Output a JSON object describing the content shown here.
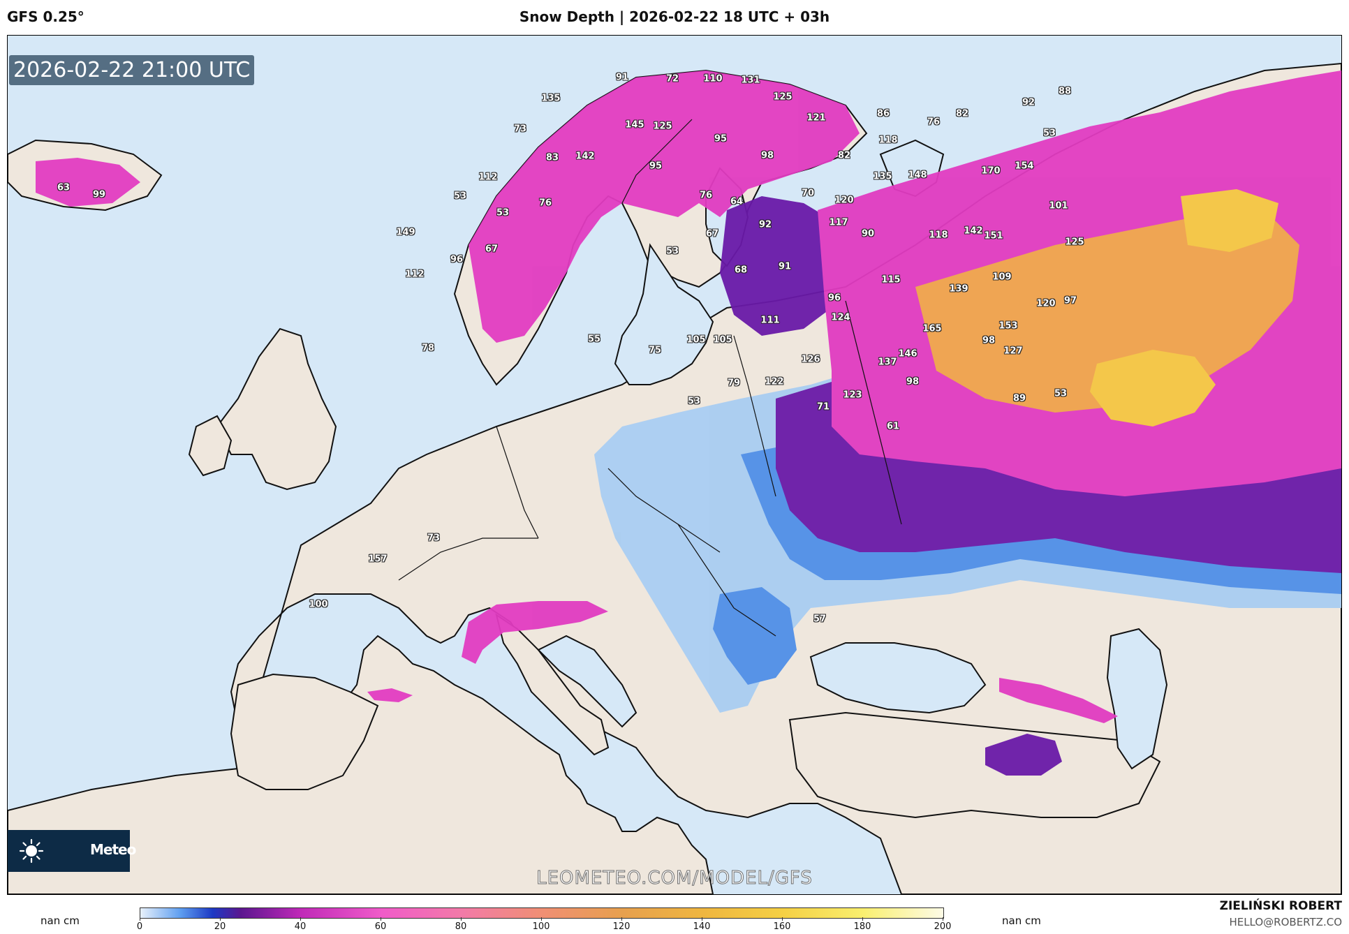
{
  "header": {
    "model": "GFS 0.25°",
    "title": "Snow Depth | 2026-02-22 18 UTC + 03h"
  },
  "map": {
    "valid_time": "2026-02-22 21:00 UTC",
    "watermark": "LEOMETEO.COM/MODEL/GFS",
    "logo_text": "Meteo",
    "colors": {
      "sea": "#d6e8f7",
      "land": "#efe7dd",
      "light_blue": "#a9cdf2",
      "blue": "#4f8fe8",
      "dark_blue": "#2a49d0",
      "purple": "#6a1aa8",
      "magenta": "#e13cc1",
      "pink": "#f37ad0",
      "orange": "#f0a24c",
      "yellow": "#f5c643"
    },
    "value_labels": [
      {
        "v": "135"
      },
      {
        "v": "91"
      },
      {
        "v": "72"
      },
      {
        "v": "110"
      },
      {
        "v": "131"
      },
      {
        "v": "125"
      },
      {
        "v": "121"
      },
      {
        "v": "86"
      },
      {
        "v": "76"
      },
      {
        "v": "82"
      },
      {
        "v": "92"
      },
      {
        "v": "88"
      },
      {
        "v": "73"
      },
      {
        "v": "145"
      },
      {
        "v": "125"
      },
      {
        "v": "95"
      },
      {
        "v": "98"
      },
      {
        "v": "82"
      },
      {
        "v": "118"
      },
      {
        "v": "53"
      },
      {
        "v": "83"
      },
      {
        "v": "142"
      },
      {
        "v": "95"
      },
      {
        "v": "135"
      },
      {
        "v": "148"
      },
      {
        "v": "170"
      },
      {
        "v": "154"
      },
      {
        "v": "112"
      },
      {
        "v": "70"
      },
      {
        "v": "76"
      },
      {
        "v": "76"
      },
      {
        "v": "64"
      },
      {
        "v": "120"
      },
      {
        "v": "101"
      },
      {
        "v": "63"
      },
      {
        "v": "99"
      },
      {
        "v": "53"
      },
      {
        "v": "53"
      },
      {
        "v": "92"
      },
      {
        "v": "117"
      },
      {
        "v": "149"
      },
      {
        "v": "67"
      },
      {
        "v": "90"
      },
      {
        "v": "118"
      },
      {
        "v": "142"
      },
      {
        "v": "151"
      },
      {
        "v": "125"
      },
      {
        "v": "96"
      },
      {
        "v": "67"
      },
      {
        "v": "53"
      },
      {
        "v": "91"
      },
      {
        "v": "68"
      },
      {
        "v": "112"
      },
      {
        "v": "115"
      },
      {
        "v": "109"
      },
      {
        "v": "78"
      },
      {
        "v": "96"
      },
      {
        "v": "139"
      },
      {
        "v": "120"
      },
      {
        "v": "97"
      },
      {
        "v": "111"
      },
      {
        "v": "153"
      },
      {
        "v": "124"
      },
      {
        "v": "165"
      },
      {
        "v": "55"
      },
      {
        "v": "105"
      },
      {
        "v": "105"
      },
      {
        "v": "146"
      },
      {
        "v": "98"
      },
      {
        "v": "75"
      },
      {
        "v": "127"
      },
      {
        "v": "126"
      },
      {
        "v": "137"
      },
      {
        "v": "79"
      },
      {
        "v": "122"
      },
      {
        "v": "98"
      },
      {
        "v": "53"
      },
      {
        "v": "123"
      },
      {
        "v": "53"
      },
      {
        "v": "89"
      },
      {
        "v": "71"
      },
      {
        "v": "61"
      },
      {
        "v": "73"
      },
      {
        "v": "157"
      },
      {
        "v": "100"
      },
      {
        "v": "57"
      }
    ]
  },
  "colorbar": {
    "left_label": "nan cm",
    "right_label": "nan cm",
    "ticks": [
      "0",
      "20",
      "40",
      "60",
      "80",
      "100",
      "120",
      "140",
      "160",
      "180",
      "200"
    ],
    "min": 0,
    "max": 200,
    "stops": [
      {
        "v": 0,
        "c": "#e8f1fb"
      },
      {
        "v": 10,
        "c": "#5e9ef0"
      },
      {
        "v": 18,
        "c": "#1d39c4"
      },
      {
        "v": 25,
        "c": "#5b168f"
      },
      {
        "v": 40,
        "c": "#c02ab8"
      },
      {
        "v": 60,
        "c": "#f05bc9"
      },
      {
        "v": 80,
        "c": "#f27aa8"
      },
      {
        "v": 100,
        "c": "#f08f74"
      },
      {
        "v": 120,
        "c": "#e7a04e"
      },
      {
        "v": 140,
        "c": "#efb640"
      },
      {
        "v": 160,
        "c": "#f5d044"
      },
      {
        "v": 180,
        "c": "#f9ef6f"
      },
      {
        "v": 200,
        "c": "#fdfbe6"
      }
    ]
  },
  "credit": {
    "name": "ZIELIŃSKI ROBERT",
    "email": "HELLO@ROBERTZ.CO"
  }
}
